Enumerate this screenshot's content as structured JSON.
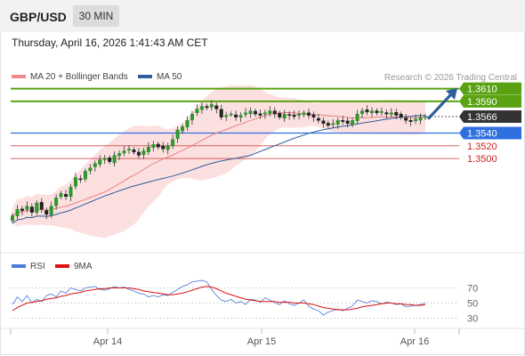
{
  "header": {
    "symbol": "GBP/USD",
    "timeframe": "30 MIN",
    "datetime": "Thursday, April 16, 2026 1:41:43 AM CET"
  },
  "chart_data": [
    {
      "type": "candlestick",
      "legend": [
        {
          "label": "MA 20 + Bollinger Bands",
          "color": "#f08a8a"
        },
        {
          "label": "MA 50",
          "color": "#2f5e9c"
        }
      ],
      "legend_position": "top-left",
      "attribution": "Research © 2026 Trading Central",
      "ylim": [
        1.336,
        1.3615
      ],
      "x_ticks": [
        "Apr 14",
        "Apr 15",
        "Apr 16"
      ],
      "current_price": {
        "label": "1.3566",
        "value": 1.3566,
        "color": "#333333"
      },
      "levels": [
        {
          "label": "1.3610",
          "value": 1.361,
          "color": "#5aa212",
          "kind": "resistance"
        },
        {
          "label": "1.3590",
          "value": 1.359,
          "color": "#5aa212",
          "kind": "resistance"
        },
        {
          "label": "1.3540",
          "value": 1.354,
          "color": "#2f6fe0",
          "kind": "pivot"
        },
        {
          "label": "1.3520",
          "value": 1.352,
          "color": "#cc2222",
          "kind": "support"
        },
        {
          "label": "1.3500",
          "value": 1.35,
          "color": "#cc2222",
          "kind": "support"
        }
      ],
      "forecast_arrow": {
        "from": 1.3565,
        "to": 1.3608,
        "color": "#2f5e9c"
      },
      "close_series": [
        1.341,
        1.342,
        1.3418,
        1.3425,
        1.3415,
        1.343,
        1.342,
        1.3412,
        1.3425,
        1.3438,
        1.3445,
        1.344,
        1.3455,
        1.347,
        1.3468,
        1.348,
        1.3485,
        1.3492,
        1.3498,
        1.35,
        1.3495,
        1.3505,
        1.3508,
        1.3512,
        1.3515,
        1.351,
        1.3505,
        1.3512,
        1.3518,
        1.3522,
        1.3518,
        1.3515,
        1.352,
        1.353,
        1.3545,
        1.355,
        1.356,
        1.357,
        1.3578,
        1.3582,
        1.358,
        1.3585,
        1.3578,
        1.3565,
        1.3568,
        1.357,
        1.3565,
        1.3568,
        1.3572,
        1.3575,
        1.357,
        1.3568,
        1.3572,
        1.3575,
        1.357,
        1.3565,
        1.357,
        1.3568,
        1.3566,
        1.357,
        1.3572,
        1.3568,
        1.3565,
        1.356,
        1.3555,
        1.3552,
        1.3555,
        1.356,
        1.3558,
        1.3555,
        1.356,
        1.357,
        1.3575,
        1.3573,
        1.3575,
        1.3572,
        1.3574,
        1.357,
        1.3572,
        1.3568,
        1.3565,
        1.356,
        1.3558,
        1.3562,
        1.3565,
        1.3566
      ]
    },
    {
      "type": "line",
      "legend": [
        {
          "label": "RSI",
          "color": "#4a7bd8"
        },
        {
          "label": "9MA",
          "color": "#dd1111"
        }
      ],
      "ylim": [
        20,
        80
      ],
      "y_ticks": [
        {
          "label": "70",
          "value": 70
        },
        {
          "label": "50",
          "value": 50
        },
        {
          "label": "30",
          "value": 30
        }
      ],
      "rsi_series": [
        48,
        58,
        52,
        60,
        50,
        55,
        52,
        60,
        62,
        58,
        66,
        63,
        70,
        68,
        66,
        70,
        71,
        72,
        68,
        67,
        69,
        72,
        70,
        71,
        68,
        66,
        63,
        62,
        58,
        60,
        58,
        61,
        60,
        64,
        68,
        72,
        74,
        78,
        79,
        80,
        78,
        68,
        60,
        54,
        52,
        55,
        50,
        52,
        48,
        55,
        54,
        51,
        57,
        54,
        50,
        48,
        53,
        49,
        47,
        50,
        54,
        46,
        42,
        40,
        34,
        38,
        40,
        42,
        40,
        43,
        46,
        54,
        52,
        50,
        53,
        52,
        49,
        51,
        50,
        48,
        49,
        45,
        46,
        47,
        48,
        50
      ],
      "ma_series": [
        40,
        44,
        47,
        50,
        51,
        52,
        53,
        55,
        56,
        57,
        59,
        60,
        62,
        63,
        64,
        66,
        67,
        68,
        69,
        69,
        70,
        70,
        70,
        70,
        70,
        69,
        68,
        66,
        65,
        64,
        63,
        62,
        61,
        61,
        62,
        63,
        65,
        67,
        69,
        71,
        72,
        71,
        69,
        66,
        63,
        61,
        59,
        57,
        55,
        54,
        53,
        52,
        52,
        52,
        52,
        51,
        51,
        51,
        50,
        50,
        50,
        49,
        48,
        46,
        44,
        43,
        42,
        41,
        41,
        41,
        42,
        43,
        45,
        46,
        47,
        48,
        49,
        50,
        50,
        49,
        49,
        48,
        48,
        47,
        47,
        48
      ]
    }
  ]
}
